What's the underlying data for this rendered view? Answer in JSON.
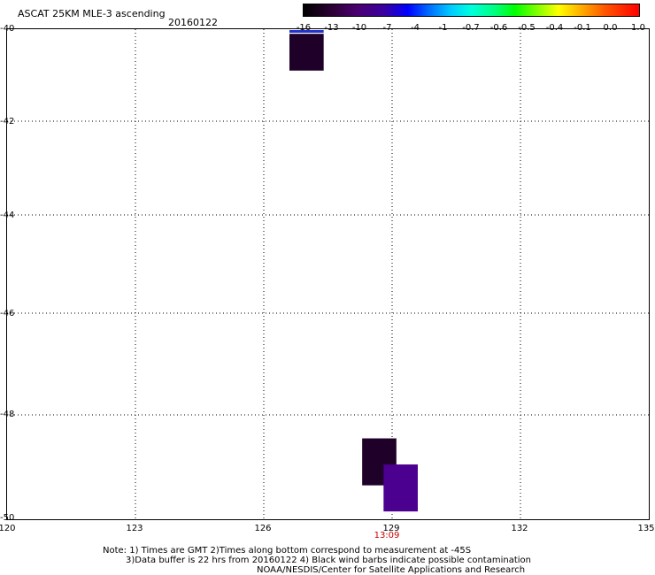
{
  "header": {
    "title": "ASCAT 25KM MLE-3 ascending",
    "date": "20160122"
  },
  "colorbar": {
    "labels": [
      "-16",
      "-13",
      "-10",
      "-7",
      "-4",
      "-1",
      "-0.7",
      "-0.6",
      "-0.5",
      "-0.4",
      "-0.1",
      "0.0",
      "1.0"
    ]
  },
  "map": {
    "lat_labels": [
      "-40",
      "-42",
      "-44",
      "-46",
      "-48",
      "-50"
    ],
    "lon_labels": [
      "120",
      "123",
      "126",
      "129",
      "132",
      "135"
    ],
    "time_label": "13:09",
    "time_color": "#cc0000"
  },
  "cells": [
    {
      "lon_min": 126.6,
      "lon_max": 127.4,
      "lat_max": -40.1,
      "lat_min": -40.9,
      "color": "#1e0028"
    },
    {
      "lon_min": 128.3,
      "lon_max": 129.1,
      "lat_max": -48.45,
      "lat_min": -49.35,
      "color": "#1e0028"
    },
    {
      "lon_min": 128.8,
      "lon_max": 129.6,
      "lat_max": -48.95,
      "lat_min": -49.85,
      "color": "#4b0090"
    }
  ],
  "edge_mark": {
    "lon_min": 126.6,
    "lon_max": 127.4,
    "lat": -40.05,
    "color": "#2233cc"
  },
  "notes": {
    "line1": "Note: 1) Times are GMT 2)Times along bottom correspond to measurement at -45S",
    "line2": "3)Data buffer is 22 hrs from 20160122 4) Black wind barbs indicate possible contamination",
    "line3": "NOAA/NESDIS/Center for Satellite Applications and Research"
  }
}
